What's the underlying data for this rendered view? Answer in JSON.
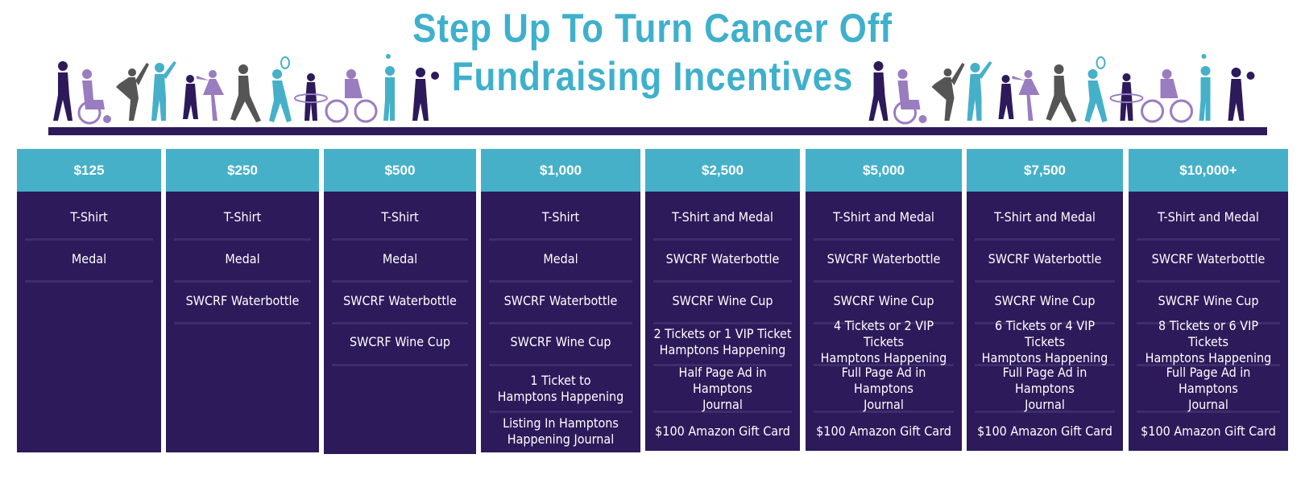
{
  "title": {
    "line1": "Step Up To Turn Cancer Off",
    "line2": "Fundraising Incentives"
  },
  "colors": {
    "title": "#3fb0cc",
    "header": "#46b0c9",
    "panel": "#2d1a5a",
    "figure_purple": "#2d1a5a",
    "figure_lavender": "#9a7cc0",
    "figure_teal": "#46b0c9",
    "figure_gray": "#666666"
  },
  "tiers": [
    {
      "amount": "$125",
      "items": [
        "T-Shirt",
        "Medal"
      ]
    },
    {
      "amount": "$250",
      "items": [
        "T-Shirt",
        "Medal",
        "SWCRF Waterbottle"
      ]
    },
    {
      "amount": "$500",
      "items": [
        "T-Shirt",
        "Medal",
        "SWCRF Waterbottle",
        "SWCRF Wine Cup"
      ]
    },
    {
      "amount": "$1,000",
      "items": [
        "T-Shirt",
        "Medal",
        "SWCRF Waterbottle",
        "SWCRF Wine Cup",
        "1 Ticket to\nHamptons Happening",
        "Listing In Hamptons\nHappening Journal"
      ]
    },
    {
      "amount": "$2,500",
      "items": [
        "T-Shirt and Medal",
        "SWCRF Waterbottle",
        "SWCRF Wine Cup",
        "2 Tickets or 1 VIP Ticket\nHamptons Happening",
        "Half Page Ad in Hamptons\nJournal",
        "$100 Amazon Gift Card"
      ]
    },
    {
      "amount": "$5,000",
      "items": [
        "T-Shirt and Medal",
        "SWCRF Waterbottle",
        "SWCRF Wine Cup",
        "4 Tickets or 2 VIP Tickets\nHamptons Happening",
        "Full Page Ad in Hamptons\nJournal",
        "$100 Amazon Gift Card"
      ]
    },
    {
      "amount": "$7,500",
      "items": [
        "T-Shirt and Medal",
        "SWCRF Waterbottle",
        "SWCRF Wine Cup",
        "6 Tickets or 4 VIP Tickets\nHamptons Happening",
        "Full Page Ad in Hamptons\nJournal",
        "$100 Amazon Gift Card"
      ]
    },
    {
      "amount": "$10,000+",
      "items": [
        "T-Shirt and Medal",
        "SWCRF Waterbottle",
        "SWCRF Wine Cup",
        "8 Tickets or 6 VIP Tickets\nHamptons Happening",
        "Full Page Ad in Hamptons\nJournal",
        "$100 Amazon Gift Card"
      ]
    }
  ]
}
